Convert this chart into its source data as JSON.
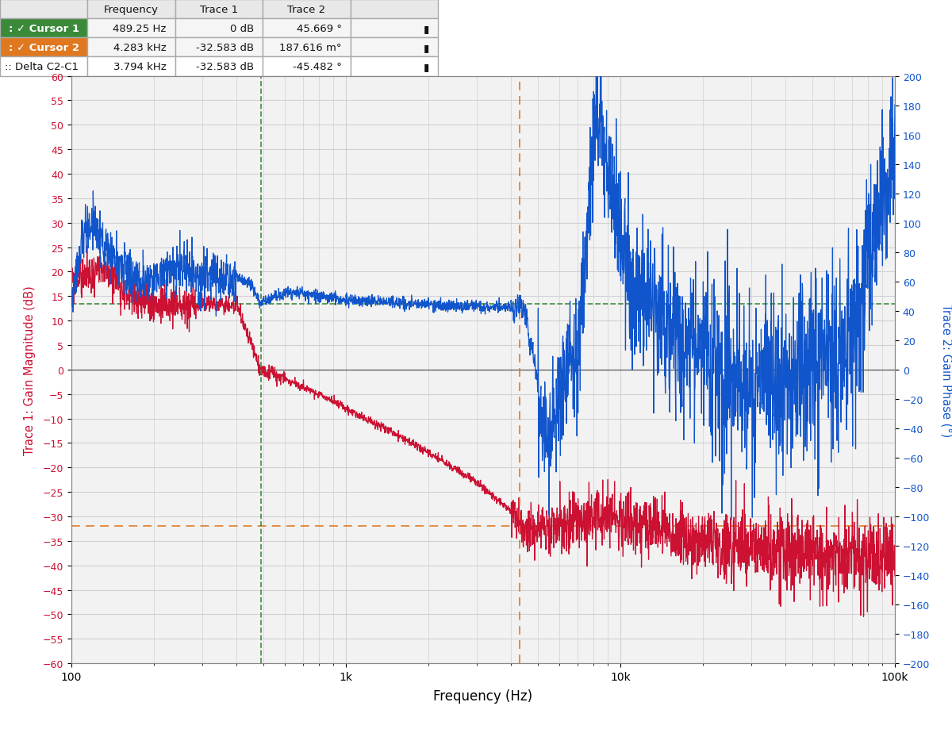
{
  "xlabel": "Frequency (Hz)",
  "ylabel_left": "Trace 1: Gain Magnitude (dB)",
  "ylabel_right": "Trace 2: Gain Phase (°)",
  "xlim": [
    100,
    100000
  ],
  "ylim_left": [
    -60,
    60
  ],
  "ylim_right": [
    -200,
    200
  ],
  "cursor1_freq": 489.25,
  "cursor2_freq": 4283,
  "cursor1_color": "#3a8a3a",
  "cursor2_color": "#e07820",
  "hline_green_dB": 13.5,
  "hline_orange_dB": -32.0,
  "trace1_color": "#cc1133",
  "trace2_color": "#1155cc",
  "bg_color": "#f2f2f2",
  "grid_color": "#d0d0d0",
  "table_header_bg": "#e0e0e0",
  "cursor1_row_bg": "#3a8a3a",
  "cursor2_row_bg": "#e07820",
  "col_labels": [
    "",
    "Frequency",
    "Trace 1",
    "Trace 2",
    ""
  ],
  "row1": [
    ": ✓ Cursor 1",
    "489.25 Hz",
    "0 dB",
    "45.669 °",
    "▮"
  ],
  "row2": [
    ": ✓ Cursor 2",
    "4.283 kHz",
    "-32.583 dB",
    "187.616 m°",
    "▮"
  ],
  "row3": [
    ":: Delta C2-C1",
    "3.794 kHz",
    "-32.583 dB",
    "-45.482 °",
    "▮"
  ]
}
